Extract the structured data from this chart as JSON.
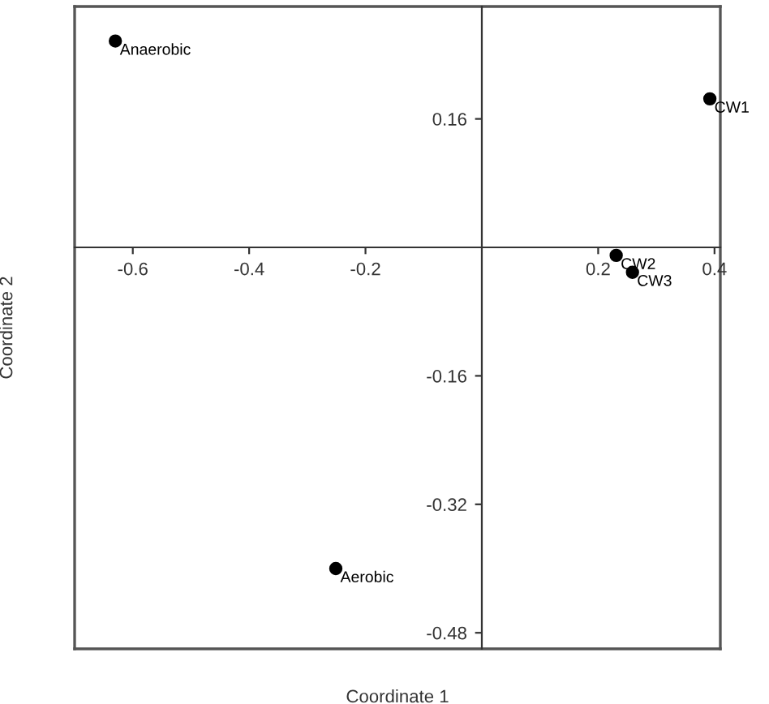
{
  "chart_data": {
    "type": "scatter",
    "xlabel": "Coordinate 1",
    "ylabel": "Coordinate 2",
    "x": [
      -0.63,
      0.392,
      0.231,
      0.259,
      -0.251
    ],
    "series": [
      {
        "color": "#000000",
        "values": [
          0.257,
          0.185,
          -0.01,
          -0.031,
          -0.4
        ]
      }
    ],
    "annotations": [
      {
        "text": "Anaerobic",
        "x": -0.63,
        "y": 0.257
      },
      {
        "text": "CW1",
        "x": 0.392,
        "y": 0.185
      },
      {
        "text": "CW2",
        "x": 0.231,
        "y": -0.01
      },
      {
        "text": "CW3",
        "x": 0.259,
        "y": -0.031
      },
      {
        "text": "Aerobic",
        "x": -0.251,
        "y": -0.4
      }
    ],
    "xlim": [
      -0.7,
      0.41
    ],
    "ylim": [
      -0.5,
      0.3
    ],
    "xticks": [
      -0.6,
      -0.4,
      -0.2,
      0.2,
      0.4
    ],
    "yticks": [
      0.16,
      -0.16,
      -0.32,
      -0.48
    ],
    "marker": "circle",
    "grid": false,
    "legend": false
  }
}
